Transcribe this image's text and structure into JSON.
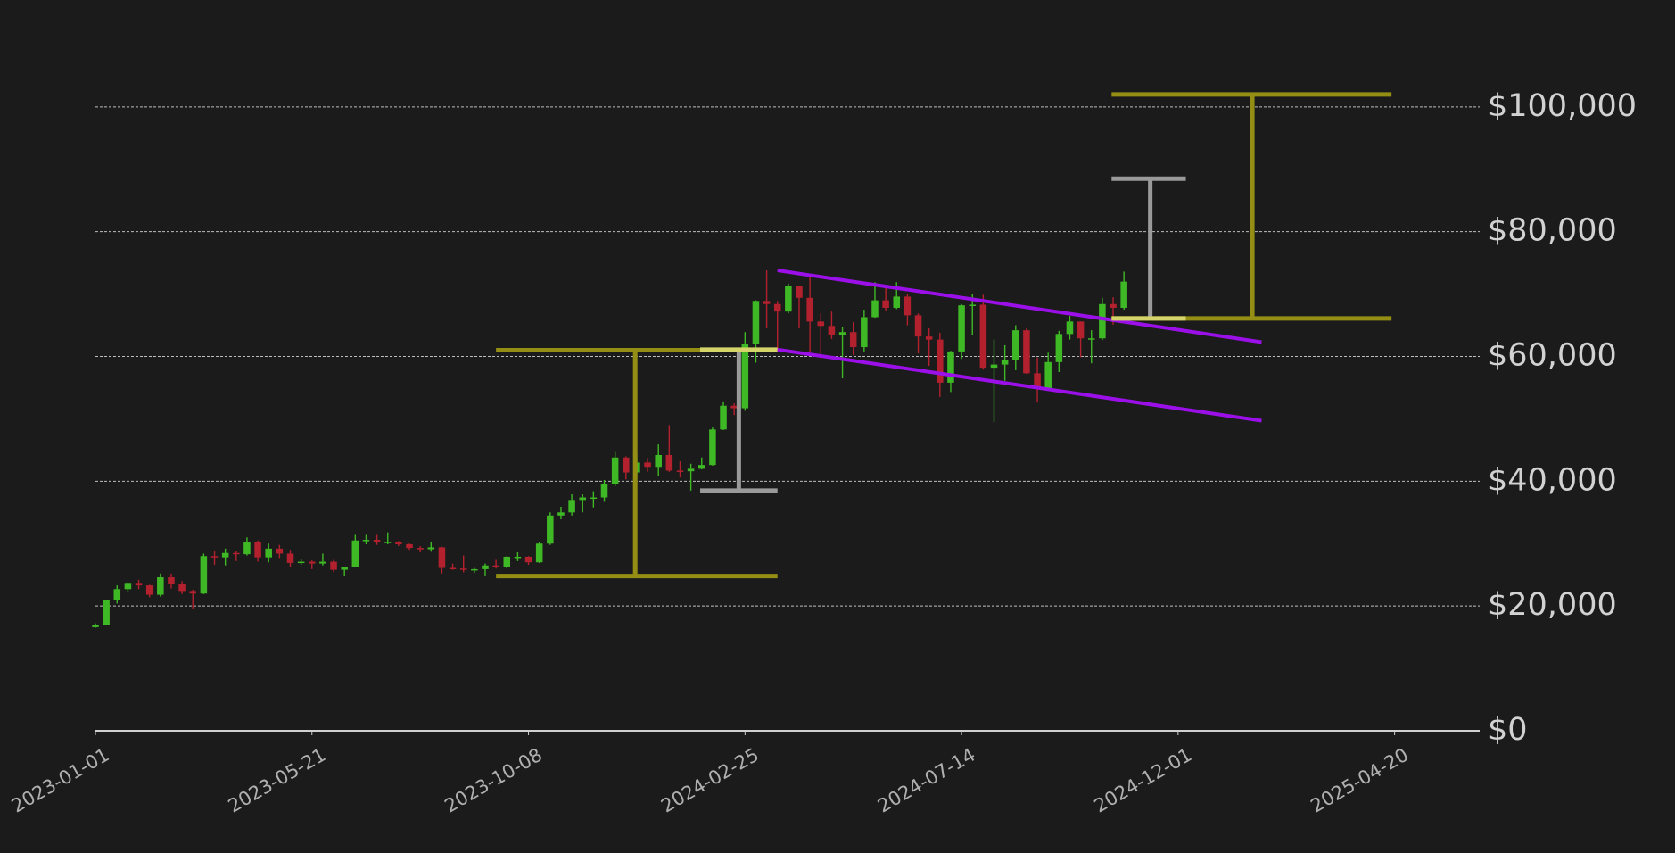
{
  "chart_data": {
    "type": "candlestick",
    "x": [
      "2023-01-01",
      "2023-01-08",
      "2023-01-15",
      "2023-01-22",
      "2023-01-29",
      "2023-02-05",
      "2023-02-12",
      "2023-02-19",
      "2023-02-26",
      "2023-03-05",
      "2023-03-12",
      "2023-03-19",
      "2023-03-26",
      "2023-04-02",
      "2023-04-09",
      "2023-04-16",
      "2023-04-23",
      "2023-04-30",
      "2023-05-07",
      "2023-05-14",
      "2023-05-21",
      "2023-05-28",
      "2023-06-04",
      "2023-06-11",
      "2023-06-18",
      "2023-06-25",
      "2023-07-02",
      "2023-07-09",
      "2023-07-16",
      "2023-07-23",
      "2023-07-30",
      "2023-08-06",
      "2023-08-13",
      "2023-08-20",
      "2023-08-27",
      "2023-09-03",
      "2023-09-10",
      "2023-09-17",
      "2023-09-24",
      "2023-10-01",
      "2023-10-08",
      "2023-10-15",
      "2023-10-22",
      "2023-10-29",
      "2023-11-05",
      "2023-11-12",
      "2023-11-19",
      "2023-11-26",
      "2023-12-03",
      "2023-12-10",
      "2023-12-17",
      "2023-12-24",
      "2023-12-31",
      "2024-01-07",
      "2024-01-14",
      "2024-01-21",
      "2024-01-28",
      "2024-02-04",
      "2024-02-11",
      "2024-02-18",
      "2024-02-25",
      "2024-03-03",
      "2024-03-10",
      "2024-03-17",
      "2024-03-24",
      "2024-03-31",
      "2024-04-07",
      "2024-04-14",
      "2024-04-21",
      "2024-04-28",
      "2024-05-05",
      "2024-05-12",
      "2024-05-19",
      "2024-05-26",
      "2024-06-02",
      "2024-06-09",
      "2024-06-16",
      "2024-06-23",
      "2024-06-30",
      "2024-07-07",
      "2024-07-14",
      "2024-07-21",
      "2024-07-28",
      "2024-08-04",
      "2024-08-11",
      "2024-08-18",
      "2024-08-25",
      "2024-09-01",
      "2024-09-08",
      "2024-09-15",
      "2024-09-22",
      "2024-09-29",
      "2024-10-06",
      "2024-10-13",
      "2024-10-20",
      "2024-10-27"
    ],
    "open": [
      16600,
      16900,
      20900,
      22700,
      23700,
      23300,
      21800,
      24600,
      23500,
      22400,
      22000,
      28000,
      27800,
      28500,
      28300,
      30300,
      27800,
      29200,
      28400,
      26900,
      27100,
      26800,
      27100,
      25800,
      26300,
      30500,
      30600,
      30300,
      30300,
      29900,
      29300,
      29100,
      29400,
      26100,
      26000,
      25800,
      25900,
      26500,
      26300,
      27900,
      27900,
      27000,
      30000,
      34500,
      35000,
      37000,
      37400,
      37400,
      39500,
      43800,
      41400,
      43000,
      42300,
      44200,
      41700,
      41600,
      42000,
      42600,
      48300,
      52100,
      51700,
      62000,
      68900,
      68400,
      67200,
      71300,
      69400,
      65600,
      64900,
      63400,
      63900,
      61500,
      66300,
      69000,
      67800,
      69600,
      66600,
      63200,
      62700,
      55800,
      60800,
      68200,
      68300,
      58200,
      58700,
      59400,
      64200,
      57300,
      54900,
      59100,
      63600,
      65600,
      62900,
      62900,
      68400,
      67800
    ],
    "high": [
      17200,
      21000,
      23300,
      23800,
      24200,
      23400,
      25200,
      25200,
      24000,
      22600,
      28400,
      28900,
      29200,
      28800,
      31000,
      30500,
      30000,
      29800,
      29000,
      27600,
      27300,
      28400,
      27400,
      26200,
      31400,
      31400,
      31400,
      31800,
      30400,
      30000,
      29600,
      30200,
      29500,
      26800,
      28100,
      26100,
      26800,
      27400,
      28000,
      28600,
      28000,
      30300,
      35000,
      35900,
      37900,
      37900,
      38400,
      40200,
      44700,
      44000,
      44300,
      43700,
      45900,
      49000,
      43200,
      42800,
      43800,
      48600,
      52800,
      52500,
      63900,
      69000,
      73800,
      68900,
      71700,
      71300,
      72800,
      66900,
      67200,
      64700,
      65500,
      67500,
      71900,
      71000,
      71900,
      70000,
      66900,
      64500,
      63800,
      60900,
      68400,
      70000,
      69900,
      62700,
      61800,
      65000,
      64500,
      59800,
      60600,
      64100,
      66500,
      65600,
      64200,
      69400,
      69500,
      73600
    ],
    "low": [
      16500,
      16900,
      20400,
      22300,
      22700,
      21400,
      21500,
      22800,
      21900,
      19600,
      21900,
      26600,
      26500,
      27200,
      28100,
      27100,
      27000,
      27700,
      26200,
      26600,
      25900,
      26500,
      25400,
      24800,
      26200,
      29900,
      29800,
      29900,
      29600,
      29000,
      28600,
      28700,
      25200,
      25800,
      25400,
      25300,
      24900,
      26000,
      26000,
      27200,
      26600,
      26900,
      29800,
      33900,
      34500,
      35000,
      35800,
      36700,
      39200,
      40300,
      40600,
      41500,
      40800,
      41500,
      40600,
      38500,
      41900,
      42500,
      48200,
      50600,
      51300,
      59000,
      64500,
      60800,
      66900,
      64500,
      60800,
      59700,
      62800,
      56500,
      60200,
      60800,
      66200,
      67300,
      67600,
      65000,
      60500,
      58500,
      53500,
      54300,
      59600,
      63500,
      57900,
      49500,
      56100,
      57800,
      57200,
      52600,
      54700,
      57500,
      62700,
      59900,
      58900,
      62600,
      65100,
      67500
    ],
    "close": [
      16900,
      20900,
      22700,
      23700,
      23300,
      21800,
      24600,
      23500,
      22400,
      22000,
      28000,
      27800,
      28500,
      28300,
      30300,
      27800,
      29200,
      28400,
      26900,
      27100,
      26800,
      27100,
      25800,
      26300,
      30500,
      30600,
      30300,
      30300,
      29900,
      29300,
      29100,
      29400,
      26100,
      26000,
      25800,
      25900,
      26500,
      26300,
      27900,
      27900,
      27000,
      30000,
      34500,
      35000,
      37000,
      37400,
      37400,
      39500,
      43800,
      41400,
      43000,
      42300,
      44200,
      41700,
      41600,
      42000,
      42600,
      48300,
      52100,
      51700,
      62000,
      68900,
      68400,
      67200,
      71300,
      69400,
      65600,
      64900,
      63400,
      63900,
      61500,
      66300,
      69000,
      67800,
      69600,
      66600,
      63200,
      62700,
      55800,
      60800,
      68200,
      68300,
      58200,
      58700,
      59400,
      64200,
      57300,
      54900,
      59100,
      63600,
      65600,
      62900,
      62900,
      68400,
      67800,
      72000
    ],
    "up_color": "#3fb826",
    "down_color": "#b3202e",
    "xlim": [
      "2023-01-01",
      "2025-06-14"
    ],
    "xticks": [
      "2023-01-01",
      "2023-05-21",
      "2023-10-08",
      "2024-02-25",
      "2024-07-14",
      "2024-12-01",
      "2025-04-20"
    ],
    "ylim": [
      0,
      117000
    ],
    "yticks": [
      {
        "value": 0,
        "label": "$0"
      },
      {
        "value": 20000,
        "label": "$20,000"
      },
      {
        "value": 40000,
        "label": "$40,000"
      },
      {
        "value": 60000,
        "label": "$60,000"
      },
      {
        "value": 80000,
        "label": "$80,000"
      },
      {
        "value": 100000,
        "label": "$100,000"
      }
    ],
    "grid": true,
    "shapes": [
      {
        "color": "#948f14",
        "x": [
          "2023-09-17",
          "2024-03-17"
        ],
        "y": [
          61000,
          61000
        ]
      },
      {
        "color": "#948f14",
        "x": [
          "2023-09-17",
          "2024-03-17"
        ],
        "y": [
          24800,
          24800
        ]
      },
      {
        "color": "#948f14",
        "x": [
          "2023-12-16",
          "2023-12-16"
        ],
        "y": [
          24800,
          61000
        ]
      },
      {
        "color": "#9a9a9a",
        "x": [
          "2024-01-27",
          "2024-03-17"
        ],
        "y": [
          38500,
          38500
        ]
      },
      {
        "color": "#9a9a9a",
        "x": [
          "2024-02-21",
          "2024-02-21"
        ],
        "y": [
          38500,
          61100
        ]
      },
      {
        "color": "#d4d46a",
        "x": [
          "2024-01-27",
          "2024-03-17"
        ],
        "y": [
          61100,
          61100
        ]
      },
      {
        "color": "#9b10e8",
        "x": [
          "2024-03-17",
          "2025-01-24"
        ],
        "y": [
          73800,
          62300
        ]
      },
      {
        "color": "#9b10e8",
        "x": [
          "2024-03-17",
          "2025-01-24"
        ],
        "y": [
          61100,
          49700
        ]
      },
      {
        "color": "#948f14",
        "x": [
          "2024-10-19",
          "2025-04-18"
        ],
        "y": [
          102000,
          102000
        ]
      },
      {
        "color": "#948f14",
        "x": [
          "2024-10-19",
          "2025-04-18"
        ],
        "y": [
          66100,
          66100
        ]
      },
      {
        "color": "#948f14",
        "x": [
          "2025-01-18",
          "2025-01-18"
        ],
        "y": [
          66100,
          102000
        ]
      },
      {
        "color": "#9a9a9a",
        "x": [
          "2024-10-19",
          "2024-12-06"
        ],
        "y": [
          88500,
          88500
        ]
      },
      {
        "color": "#9a9a9a",
        "x": [
          "2024-11-13",
          "2024-11-13"
        ],
        "y": [
          66100,
          88500
        ]
      },
      {
        "color": "#d4d46a",
        "x": [
          "2024-10-19",
          "2024-12-06"
        ],
        "y": [
          66100,
          66100
        ]
      }
    ]
  }
}
